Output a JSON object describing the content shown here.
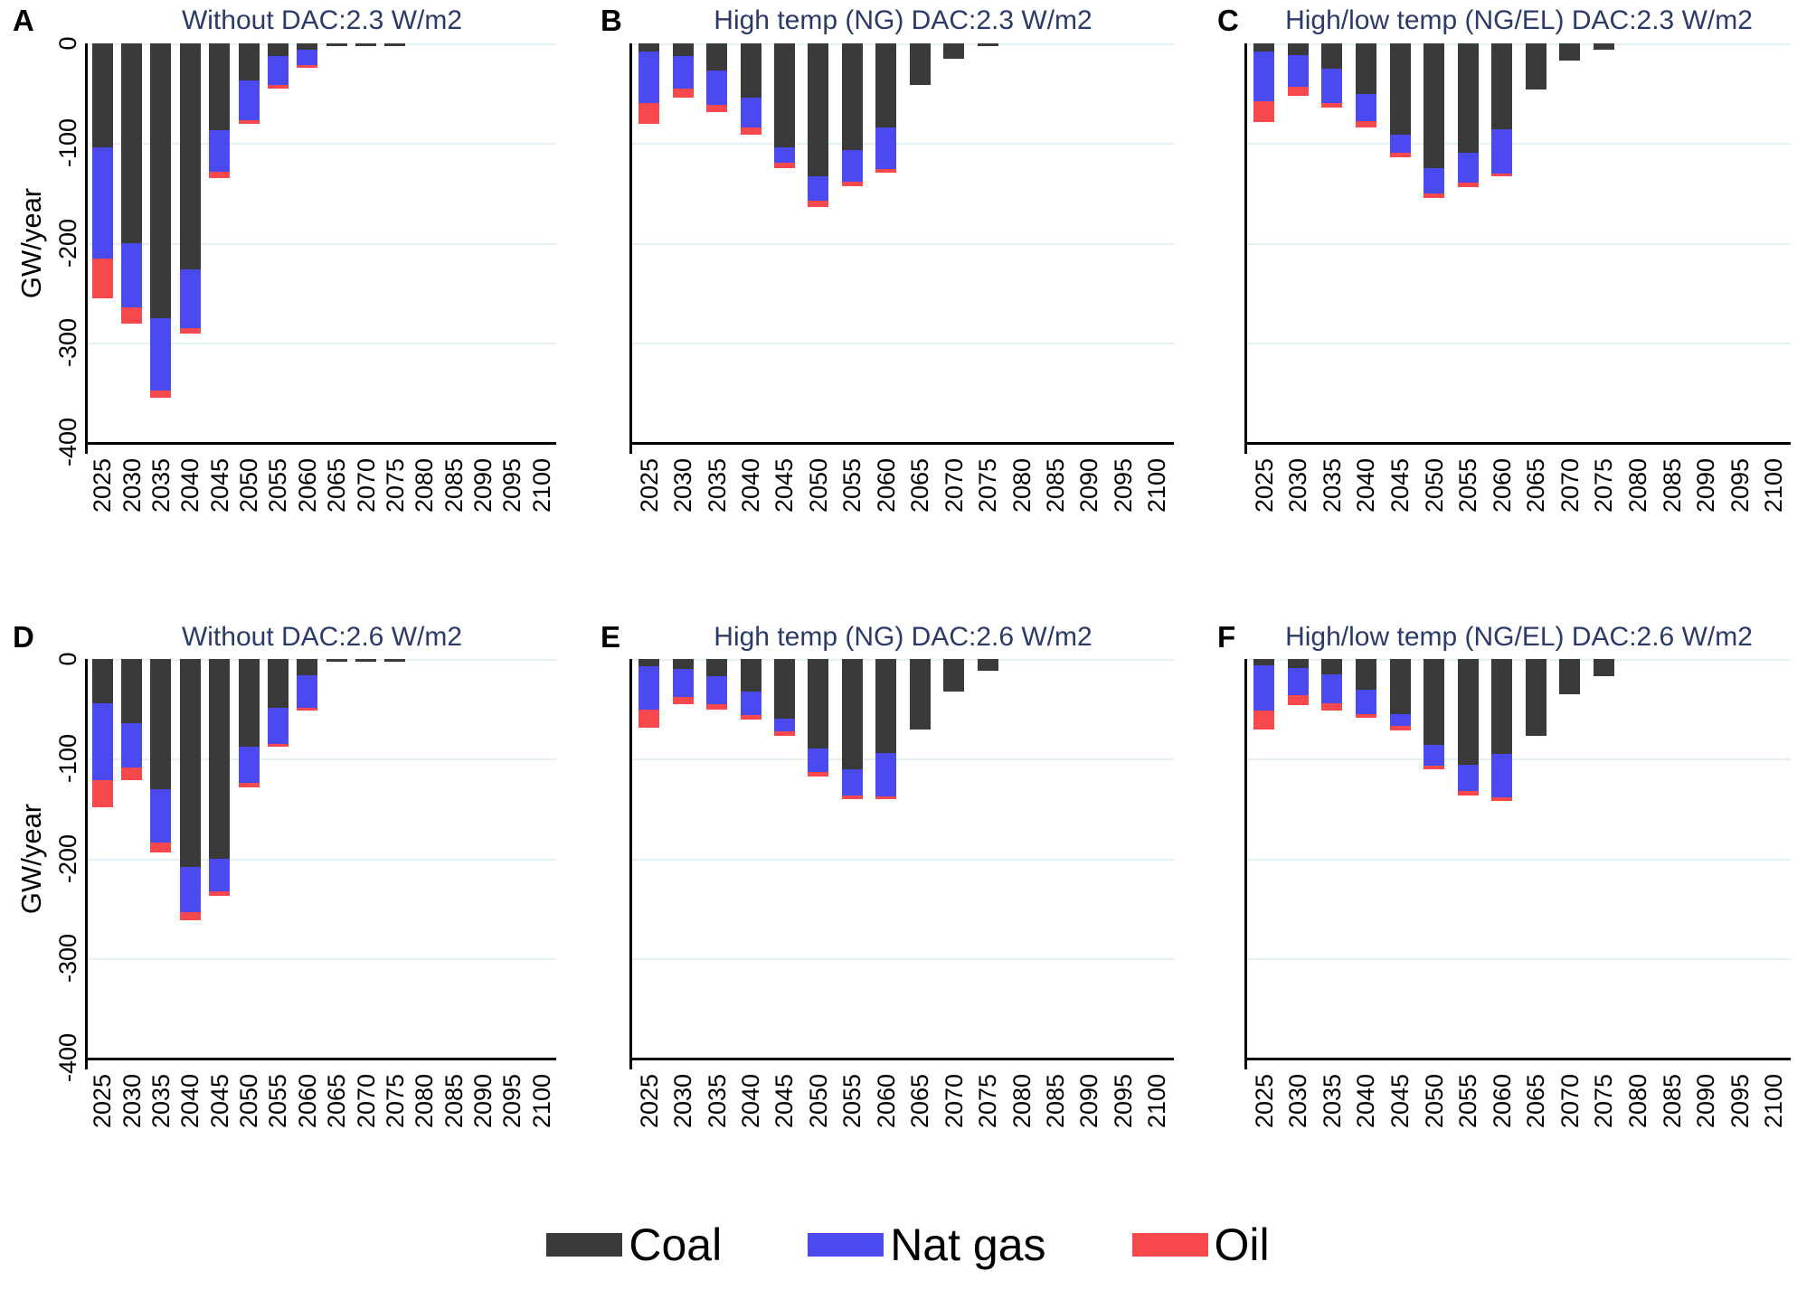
{
  "axes": {
    "ylabel": "GW/year",
    "yticks": [
      "0",
      "-100",
      "-200",
      "-300",
      "-400"
    ],
    "ylim": [
      -400,
      0
    ],
    "years": [
      "2025",
      "2030",
      "2035",
      "2040",
      "2045",
      "2050",
      "2055",
      "2060",
      "2065",
      "2070",
      "2075",
      "2080",
      "2085",
      "2090",
      "2095",
      "2100"
    ]
  },
  "figure_legend": {
    "items": [
      {
        "label": "Coal",
        "color": "#3a3a3a"
      },
      {
        "label": "Nat gas",
        "color": "#4a4af0"
      },
      {
        "label": "Oil",
        "color": "#f7484d"
      }
    ]
  },
  "chart_data": [
    {
      "type": "bar",
      "stacked": true,
      "panel_letter": "A",
      "title": "Without DAC:2.3 W/m2",
      "xlabel": "",
      "ylabel": "GW/year",
      "ylim": [
        -400,
        0
      ],
      "grid": true,
      "categories": [
        "2025",
        "2030",
        "2035",
        "2040",
        "2045",
        "2050",
        "2055",
        "2060",
        "2065",
        "2070",
        "2075",
        "2080",
        "2085",
        "2090",
        "2095",
        "2100"
      ],
      "series": [
        {
          "name": "Coal",
          "color": "#3a3a3a",
          "values": [
            -104,
            -200,
            -276,
            -227,
            -87,
            -37,
            -13,
            -6,
            -2,
            -2,
            -2,
            0,
            0,
            0,
            0,
            0
          ]
        },
        {
          "name": "Nat gas",
          "color": "#4a4af0",
          "values": [
            -112,
            -65,
            -72,
            -59,
            -42,
            -40,
            -29,
            -16,
            0,
            0,
            0,
            0,
            0,
            0,
            0,
            0
          ]
        },
        {
          "name": "Oil",
          "color": "#f7484d",
          "values": [
            -40,
            -16,
            -8,
            -5,
            -6,
            -4,
            -3,
            -2,
            0,
            0,
            0,
            0,
            0,
            0,
            0,
            0
          ]
        }
      ]
    },
    {
      "type": "bar",
      "stacked": true,
      "panel_letter": "B",
      "title": "High temp (NG) DAC:2.3 W/m2",
      "xlabel": "",
      "ylabel": "GW/year",
      "ylim": [
        -400,
        0
      ],
      "grid": true,
      "categories": [
        "2025",
        "2030",
        "2035",
        "2040",
        "2045",
        "2050",
        "2055",
        "2060",
        "2065",
        "2070",
        "2075",
        "2080",
        "2085",
        "2090",
        "2095",
        "2100"
      ],
      "series": [
        {
          "name": "Coal",
          "color": "#3a3a3a",
          "values": [
            -8,
            -13,
            -27,
            -54,
            -104,
            -133,
            -107,
            -84,
            -42,
            -15,
            -3,
            0,
            0,
            0,
            0,
            0
          ]
        },
        {
          "name": "Nat gas",
          "color": "#4a4af0",
          "values": [
            -52,
            -32,
            -35,
            -30,
            -16,
            -25,
            -32,
            -42,
            0,
            0,
            0,
            0,
            0,
            0,
            0,
            0
          ]
        },
        {
          "name": "Oil",
          "color": "#f7484d",
          "values": [
            -21,
            -9,
            -7,
            -8,
            -5,
            -6,
            -4,
            -4,
            0,
            0,
            0,
            0,
            0,
            0,
            0,
            0
          ]
        }
      ]
    },
    {
      "type": "bar",
      "stacked": true,
      "panel_letter": "C",
      "title": "High/low temp (NG/EL) DAC:2.3 W/m2",
      "xlabel": "",
      "ylabel": "GW/year",
      "ylim": [
        -400,
        0
      ],
      "grid": true,
      "categories": [
        "2025",
        "2030",
        "2035",
        "2040",
        "2045",
        "2050",
        "2055",
        "2060",
        "2065",
        "2070",
        "2075",
        "2080",
        "2085",
        "2090",
        "2095",
        "2100"
      ],
      "series": [
        {
          "name": "Coal",
          "color": "#3a3a3a",
          "values": [
            -8,
            -12,
            -25,
            -51,
            -92,
            -125,
            -110,
            -86,
            -46,
            -17,
            -6,
            0,
            0,
            0,
            0,
            0
          ]
        },
        {
          "name": "Nat gas",
          "color": "#4a4af0",
          "values": [
            -50,
            -32,
            -35,
            -27,
            -18,
            -26,
            -30,
            -45,
            0,
            0,
            0,
            0,
            0,
            0,
            0,
            0
          ]
        },
        {
          "name": "Oil",
          "color": "#f7484d",
          "values": [
            -21,
            -9,
            -4,
            -6,
            -4,
            -4,
            -4,
            -2,
            0,
            0,
            0,
            0,
            0,
            0,
            0,
            0
          ]
        }
      ]
    },
    {
      "type": "bar",
      "stacked": true,
      "panel_letter": "D",
      "title": "Without DAC:2.6 W/m2",
      "xlabel": "",
      "ylabel": "GW/year",
      "ylim": [
        -400,
        0
      ],
      "grid": true,
      "categories": [
        "2025",
        "2030",
        "2035",
        "2040",
        "2045",
        "2050",
        "2055",
        "2060",
        "2065",
        "2070",
        "2075",
        "2080",
        "2085",
        "2090",
        "2095",
        "2100"
      ],
      "series": [
        {
          "name": "Coal",
          "color": "#3a3a3a",
          "values": [
            -44,
            -64,
            -131,
            -209,
            -200,
            -88,
            -49,
            -16,
            -2,
            -2,
            -2,
            0,
            0,
            0,
            0,
            0
          ]
        },
        {
          "name": "Nat gas",
          "color": "#4a4af0",
          "values": [
            -78,
            -45,
            -53,
            -45,
            -33,
            -36,
            -36,
            -33,
            0,
            0,
            0,
            0,
            0,
            0,
            0,
            0
          ]
        },
        {
          "name": "Oil",
          "color": "#f7484d",
          "values": [
            -27,
            -13,
            -10,
            -8,
            -5,
            -5,
            -3,
            -2,
            0,
            0,
            0,
            0,
            0,
            0,
            0,
            0
          ]
        }
      ]
    },
    {
      "type": "bar",
      "stacked": true,
      "panel_letter": "E",
      "title": "High temp (NG) DAC:2.6 W/m2",
      "xlabel": "",
      "ylabel": "GW/year",
      "ylim": [
        -400,
        0
      ],
      "grid": true,
      "categories": [
        "2025",
        "2030",
        "2035",
        "2040",
        "2045",
        "2050",
        "2055",
        "2060",
        "2065",
        "2070",
        "2075",
        "2080",
        "2085",
        "2090",
        "2095",
        "2100"
      ],
      "series": [
        {
          "name": "Coal",
          "color": "#3a3a3a",
          "values": [
            -7,
            -10,
            -17,
            -33,
            -60,
            -90,
            -111,
            -94,
            -71,
            -33,
            -12,
            0,
            0,
            0,
            0,
            0
          ]
        },
        {
          "name": "Nat gas",
          "color": "#4a4af0",
          "values": [
            -44,
            -28,
            -28,
            -23,
            -13,
            -23,
            -26,
            -44,
            0,
            0,
            0,
            0,
            0,
            0,
            0,
            0
          ]
        },
        {
          "name": "Oil",
          "color": "#f7484d",
          "values": [
            -18,
            -7,
            -6,
            -5,
            -4,
            -5,
            -4,
            -3,
            0,
            0,
            0,
            0,
            0,
            0,
            0,
            0
          ]
        }
      ]
    },
    {
      "type": "bar",
      "stacked": true,
      "panel_letter": "F",
      "title": "High/low temp (NG/EL) DAC:2.6 W/m2",
      "xlabel": "",
      "ylabel": "GW/year",
      "ylim": [
        -400,
        0
      ],
      "grid": true,
      "categories": [
        "2025",
        "2030",
        "2035",
        "2040",
        "2045",
        "2050",
        "2055",
        "2060",
        "2065",
        "2070",
        "2075",
        "2080",
        "2085",
        "2090",
        "2095",
        "2100"
      ],
      "series": [
        {
          "name": "Coal",
          "color": "#3a3a3a",
          "values": [
            -6,
            -9,
            -15,
            -31,
            -55,
            -86,
            -106,
            -95,
            -77,
            -35,
            -17,
            0,
            0,
            0,
            0,
            0
          ]
        },
        {
          "name": "Nat gas",
          "color": "#4a4af0",
          "values": [
            -46,
            -27,
            -29,
            -24,
            -12,
            -21,
            -26,
            -44,
            0,
            0,
            0,
            0,
            0,
            0,
            0,
            0
          ]
        },
        {
          "name": "Oil",
          "color": "#f7484d",
          "values": [
            -19,
            -10,
            -8,
            -4,
            -5,
            -4,
            -5,
            -3,
            0,
            0,
            0,
            0,
            0,
            0,
            0,
            0
          ]
        }
      ]
    }
  ]
}
